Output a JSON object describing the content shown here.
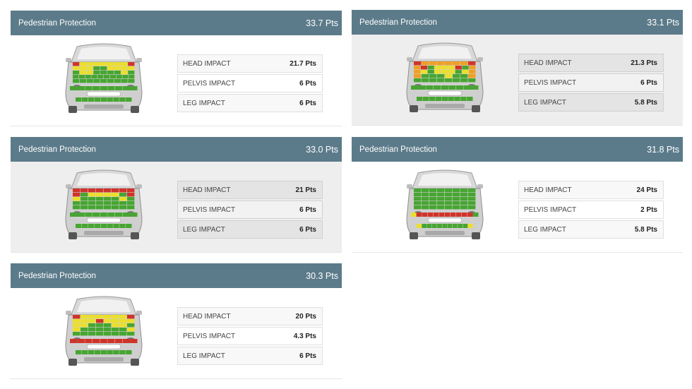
{
  "colors": {
    "header": "#5c7b8a",
    "green": "#47a532",
    "yellow": "#ecdf2a",
    "orange": "#eea024",
    "red": "#d0332a"
  },
  "panels": [
    {
      "title": "Pedestrian Protection",
      "score": "33.7 Pts",
      "rows": [
        {
          "label": "HEAD IMPACT",
          "value": "21.7 Pts"
        },
        {
          "label": "PELVIS IMPACT",
          "value": "6 Pts"
        },
        {
          "label": "LEG IMPACT",
          "value": "6 Pts"
        }
      ]
    },
    {
      "title": "Pedestrian Protection",
      "score": "33.1 Pts",
      "rows": [
        {
          "label": "HEAD IMPACT",
          "value": "21.3 Pts"
        },
        {
          "label": "PELVIS IMPACT",
          "value": "6 Pts"
        },
        {
          "label": "LEG IMPACT",
          "value": "5.8 Pts"
        }
      ]
    },
    {
      "title": "Pedestrian Protection",
      "score": "33.0 Pts",
      "rows": [
        {
          "label": "HEAD IMPACT",
          "value": "21 Pts"
        },
        {
          "label": "PELVIS IMPACT",
          "value": "6 Pts"
        },
        {
          "label": "LEG IMPACT",
          "value": "6 Pts"
        }
      ]
    },
    {
      "title": "Pedestrian Protection",
      "score": "31.8 Pts",
      "rows": [
        {
          "label": "HEAD IMPACT",
          "value": "24 Pts"
        },
        {
          "label": "PELVIS IMPACT",
          "value": "2 Pts"
        },
        {
          "label": "LEG IMPACT",
          "value": "5.8 Pts"
        }
      ]
    },
    {
      "title": "Pedestrian Protection",
      "score": "30.3 Pts",
      "rows": [
        {
          "label": "HEAD IMPACT",
          "value": "20 Pts"
        },
        {
          "label": "PELVIS IMPACT",
          "value": "4.3 Pts"
        },
        {
          "label": "LEG IMPACT",
          "value": "6 Pts"
        }
      ]
    }
  ]
}
